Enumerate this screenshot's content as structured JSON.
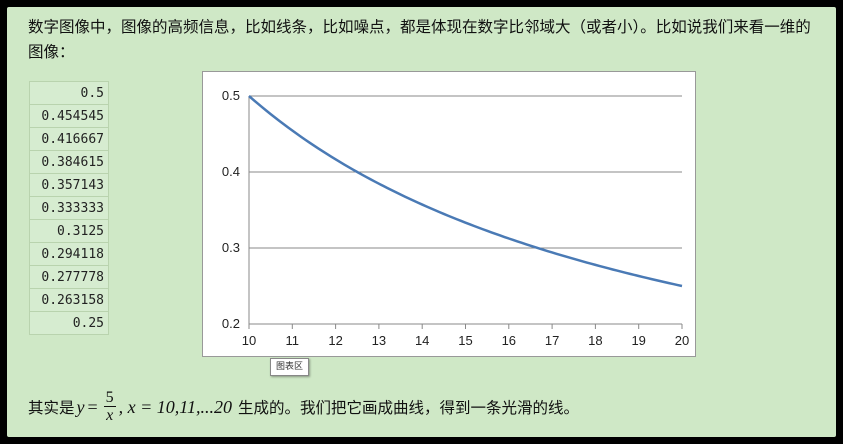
{
  "intro": "数字图像中，图像的高频信息，比如线条，比如噪点，都是体现在数字比邻域大（或者小）。比如说我们来看一维的图像：",
  "table_values": [
    "0.5",
    "0.454545",
    "0.416667",
    "0.384615",
    "0.357143",
    "0.333333",
    "0.3125",
    "0.294118",
    "0.277778",
    "0.263158",
    "0.25"
  ],
  "tooltip": "图表区",
  "formula": {
    "prefix": "其实是",
    "y": "y",
    "eq": "=",
    "num": "5",
    "den": "x",
    "x_part": ", x = 10,11,...20",
    "suffix": "生成的。我们把它画成曲线，得到一条光滑的线。"
  },
  "chart_data": {
    "type": "line",
    "x": [
      10,
      11,
      12,
      13,
      14,
      15,
      16,
      17,
      18,
      19,
      20
    ],
    "y": [
      0.5,
      0.454545,
      0.416667,
      0.384615,
      0.357143,
      0.333333,
      0.3125,
      0.294118,
      0.277778,
      0.263158,
      0.25
    ],
    "xlim": [
      10,
      20
    ],
    "ylim": [
      0.2,
      0.5
    ],
    "x_ticks": [
      "10",
      "11",
      "12",
      "13",
      "14",
      "15",
      "16",
      "17",
      "18",
      "19",
      "20"
    ],
    "y_ticks": [
      "0.5",
      "0.4",
      "0.3",
      "0.2"
    ],
    "line_color": "#4a7ab5",
    "grid": true
  }
}
